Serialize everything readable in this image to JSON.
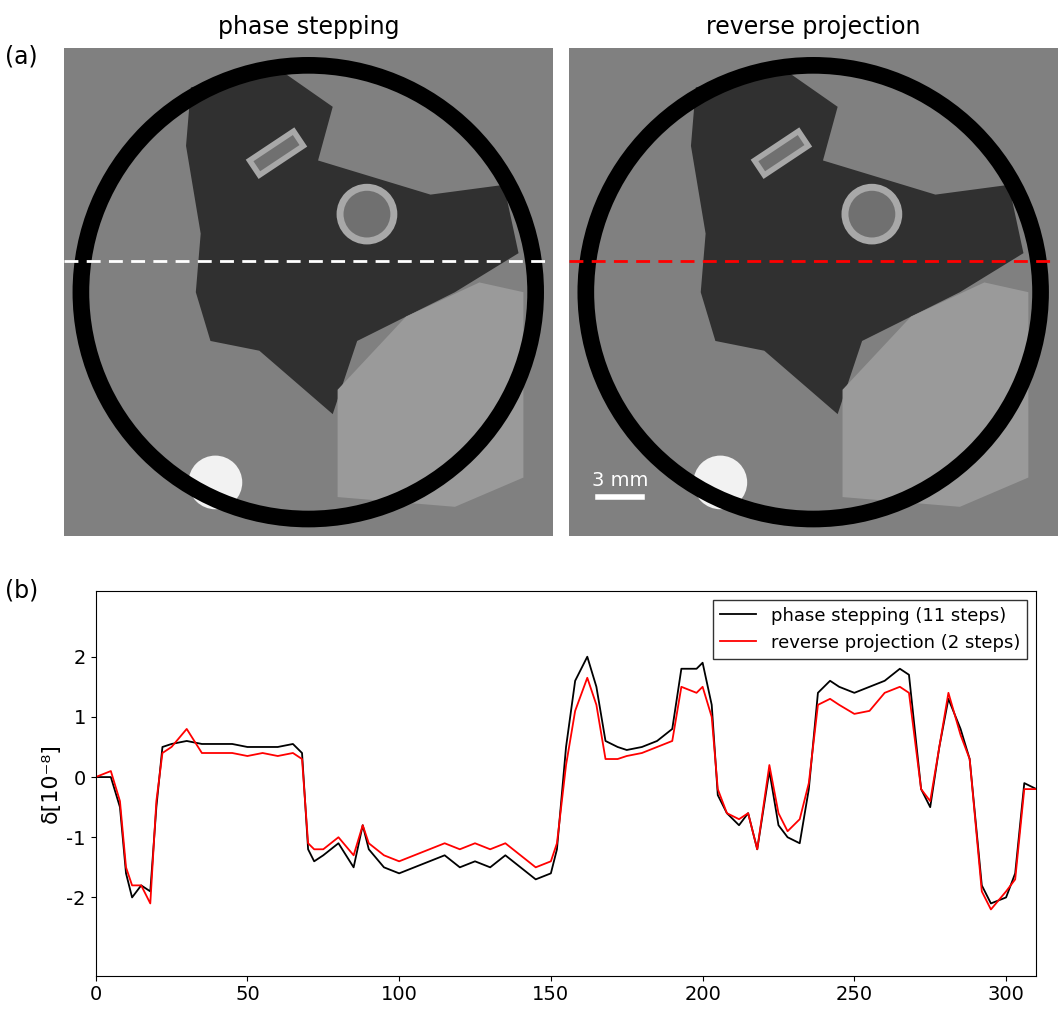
{
  "chart_data": [
    {
      "type": "image",
      "panel_label": "(a)",
      "title": "phase stepping",
      "color": "white"
    },
    {
      "type": "image",
      "title": "reverse projection",
      "color": "red",
      "annotations": [
        "3 mm"
      ]
    },
    {
      "type": "line",
      "panel_label": "(b)",
      "ylabel": "δ[10⁻⁸]",
      "x": [
        0,
        5,
        8,
        10,
        12,
        15,
        18,
        20,
        22,
        25,
        30,
        35,
        40,
        45,
        50,
        55,
        60,
        65,
        68,
        70,
        72,
        75,
        80,
        85,
        88,
        90,
        95,
        100,
        105,
        110,
        115,
        120,
        125,
        130,
        135,
        140,
        145,
        150,
        152,
        155,
        158,
        162,
        165,
        168,
        172,
        175,
        180,
        185,
        190,
        193,
        198,
        200,
        203,
        205,
        208,
        212,
        215,
        218,
        222,
        225,
        228,
        232,
        235,
        238,
        242,
        245,
        250,
        255,
        260,
        265,
        268,
        272,
        275,
        278,
        281,
        285,
        288,
        292,
        295,
        300,
        303,
        306,
        310
      ],
      "series": [
        {
          "name": "phase stepping (11 steps)",
          "color": "black",
          "values": [
            0,
            0.0,
            -0.5,
            -1.6,
            -2.0,
            -1.8,
            -1.9,
            -0.5,
            0.5,
            0.55,
            0.6,
            0.55,
            0.55,
            0.55,
            0.5,
            0.5,
            0.5,
            0.55,
            0.4,
            -1.2,
            -1.4,
            -1.3,
            -1.1,
            -1.5,
            -0.8,
            -1.2,
            -1.5,
            -1.6,
            -1.5,
            -1.4,
            -1.3,
            -1.5,
            -1.4,
            -1.5,
            -1.3,
            -1.5,
            -1.7,
            -1.6,
            -1.2,
            0.5,
            1.6,
            2.0,
            1.5,
            0.6,
            0.5,
            0.45,
            0.5,
            0.6,
            0.8,
            1.8,
            1.8,
            1.9,
            1.2,
            -0.3,
            -0.6,
            -0.8,
            -0.6,
            -1.2,
            0.1,
            -0.8,
            -1.0,
            -1.1,
            -0.2,
            1.4,
            1.6,
            1.5,
            1.4,
            1.5,
            1.6,
            1.8,
            1.7,
            -0.2,
            -0.5,
            0.5,
            1.3,
            0.8,
            0.3,
            -1.8,
            -2.1,
            -2.0,
            -1.6,
            -0.1,
            -0.2
          ]
        },
        {
          "name": "reverse projection (2 steps)",
          "color": "red",
          "values": [
            0,
            0.1,
            -0.4,
            -1.5,
            -1.8,
            -1.8,
            -2.1,
            -0.4,
            0.4,
            0.5,
            0.8,
            0.4,
            0.4,
            0.4,
            0.35,
            0.4,
            0.35,
            0.4,
            0.3,
            -1.1,
            -1.2,
            -1.2,
            -1.0,
            -1.3,
            -0.8,
            -1.1,
            -1.3,
            -1.4,
            -1.3,
            -1.2,
            -1.1,
            -1.2,
            -1.1,
            -1.2,
            -1.1,
            -1.3,
            -1.5,
            -1.4,
            -1.1,
            0.2,
            1.1,
            1.65,
            1.2,
            0.3,
            0.3,
            0.35,
            0.4,
            0.5,
            0.6,
            1.5,
            1.4,
            1.5,
            1.0,
            -0.2,
            -0.6,
            -0.7,
            -0.6,
            -1.2,
            0.2,
            -0.6,
            -0.9,
            -0.7,
            -0.1,
            1.2,
            1.3,
            1.2,
            1.05,
            1.1,
            1.4,
            1.5,
            1.4,
            -0.2,
            -0.4,
            0.5,
            1.4,
            0.7,
            0.3,
            -1.9,
            -2.2,
            -1.9,
            -1.7,
            -0.2,
            -0.2
          ]
        }
      ],
      "xlim": [
        0,
        310
      ],
      "ylim": [
        -3.3,
        3.1
      ],
      "xticks": [
        0,
        50,
        100,
        150,
        200,
        250,
        300
      ],
      "yticks": [
        -2,
        -1,
        0,
        1,
        2
      ],
      "legend": "upper right"
    }
  ]
}
